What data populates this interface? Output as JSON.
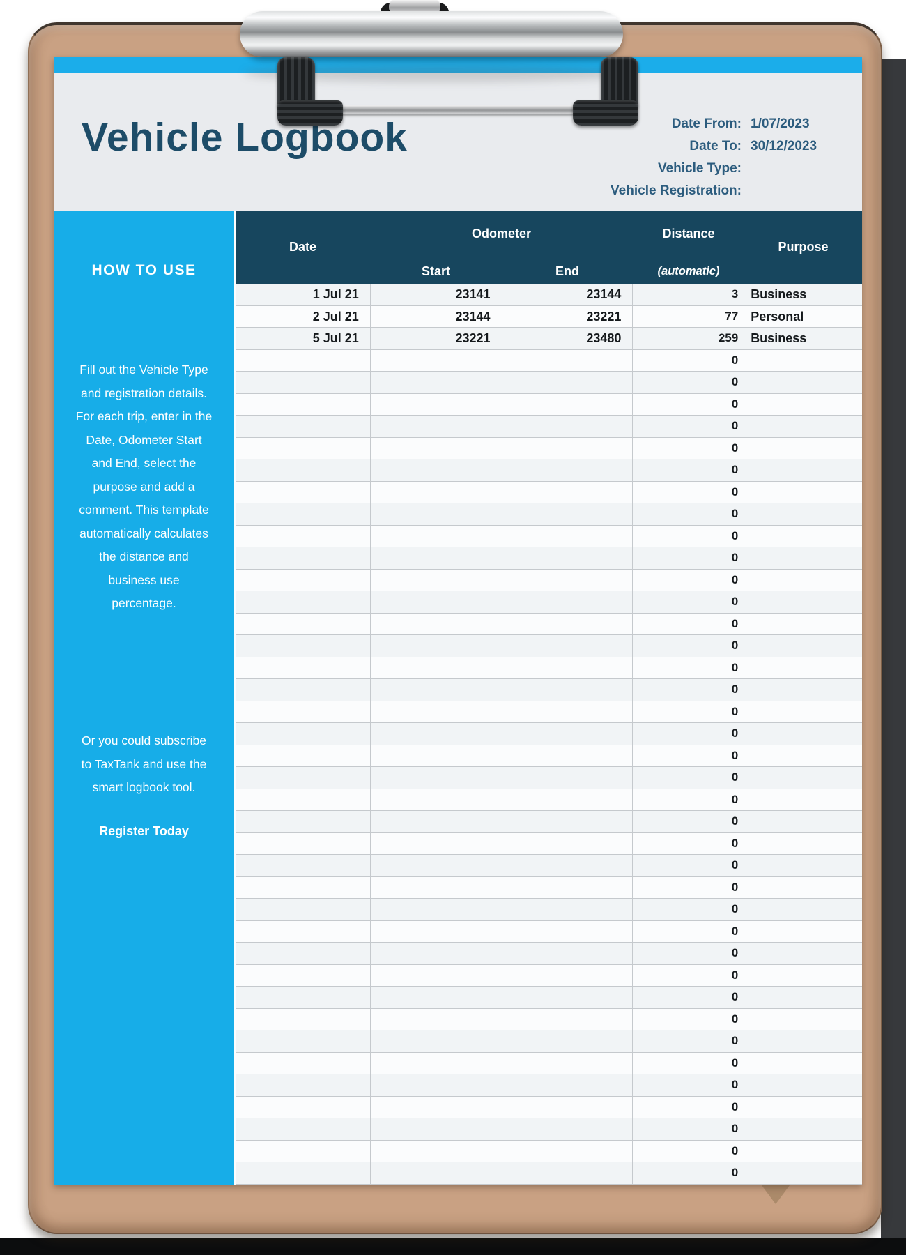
{
  "header": {
    "title": "Vehicle Logbook",
    "fields": [
      {
        "label": "Date From:",
        "value": "1/07/2023"
      },
      {
        "label": "Date To:",
        "value": "30/12/2023"
      },
      {
        "label": "Vehicle Type:",
        "value": ""
      },
      {
        "label": "Vehicle Registration:",
        "value": ""
      }
    ]
  },
  "sidebar": {
    "heading": "HOW TO USE",
    "paragraph1": "Fill out the Vehicle Type\nand registration details.\nFor each trip, enter in the\nDate, Odometer Start\nand End, select the\npurpose and add a\ncomment.  This template\nautomatically calculates\nthe distance and\nbusiness use\npercentage.",
    "paragraph2": "Or you could subscribe\nto TaxTank and use the\nsmart logbook tool.",
    "cta": "Register Today"
  },
  "table": {
    "columns": {
      "date": "Date",
      "odometer": "Odometer",
      "start": "Start",
      "end": "End",
      "distance": "Distance",
      "distance_sub": "(automatic)",
      "purpose": "Purpose"
    },
    "rows": [
      {
        "date": "1 Jul 21",
        "start": "23141",
        "end": "23144",
        "distance": "3",
        "purpose": "Business"
      },
      {
        "date": "2 Jul 21",
        "start": "23144",
        "end": "23221",
        "distance": "77",
        "purpose": "Personal"
      },
      {
        "date": "5 Jul 21",
        "start": "23221",
        "end": "23480",
        "distance": "259",
        "purpose": "Business"
      }
    ],
    "empty_row_count": 38,
    "empty_distance_value": "0"
  },
  "colors": {
    "accent_cyan": "#17ade8",
    "header_navy": "#17465e",
    "title_navy": "#1d4c68",
    "board_tan": "#c9a183",
    "paper_header_gray": "#e9ebee"
  }
}
